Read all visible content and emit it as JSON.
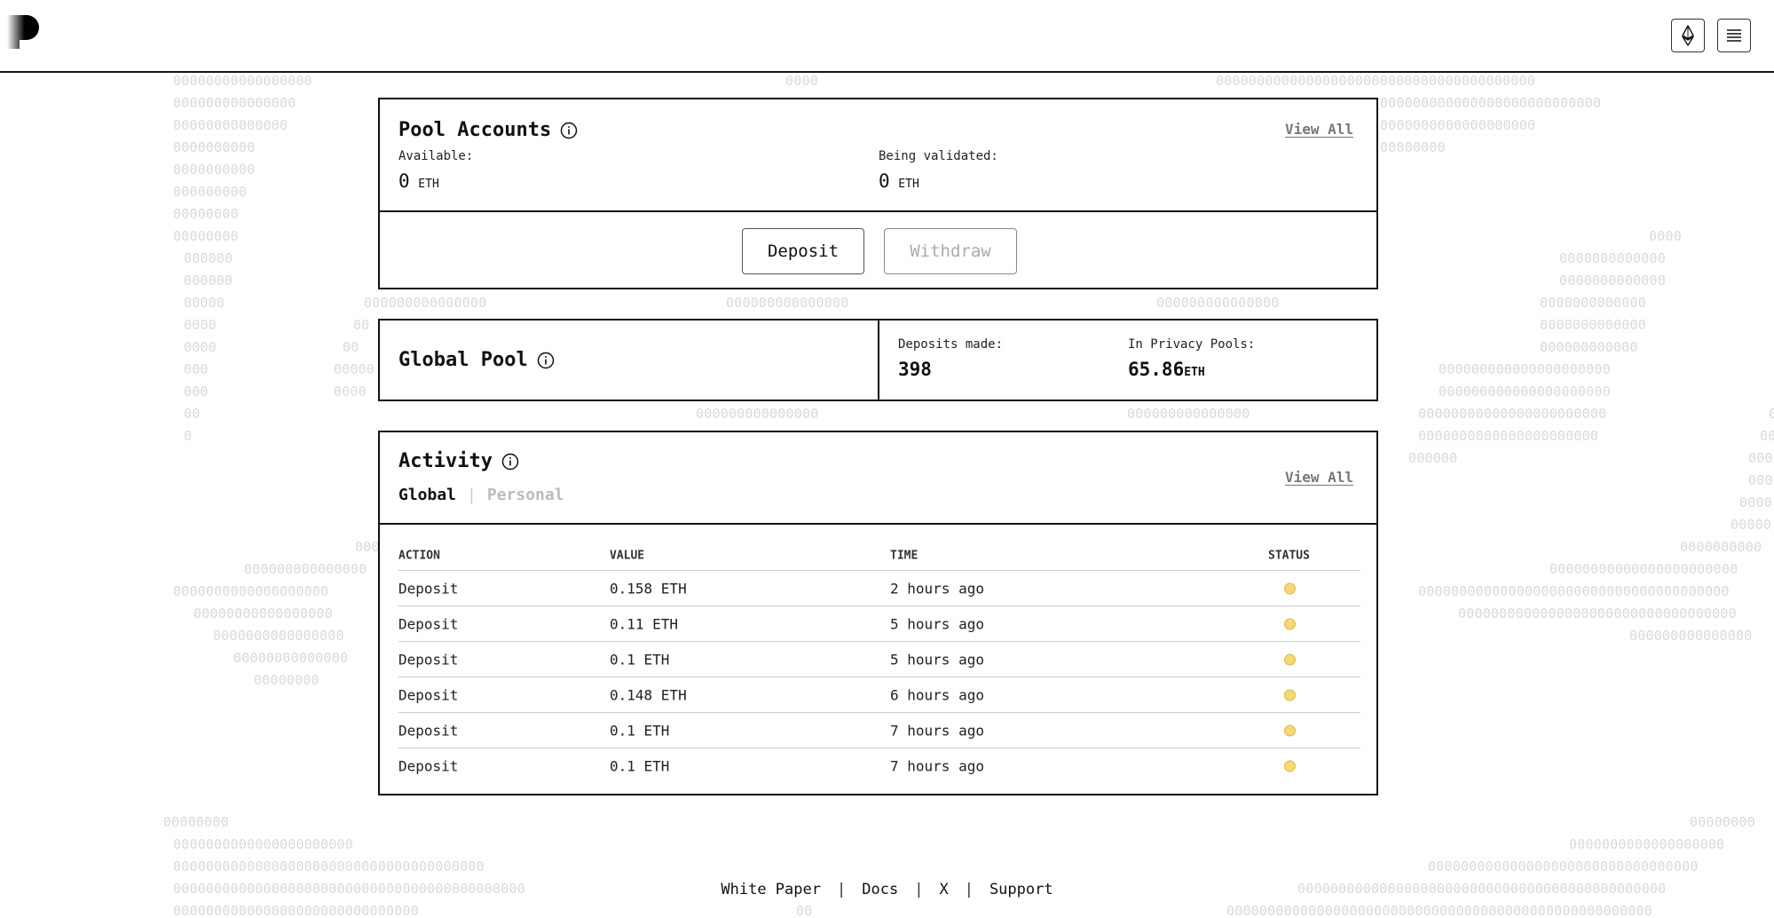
{
  "header": {
    "logo_icon": "privacy-pools-logo-icon",
    "network_icon": "ethereum-icon",
    "menu_icon": "menu-icon"
  },
  "pool_accounts": {
    "title": "Pool Accounts",
    "view_all": "View All",
    "available_label": "Available:",
    "available_value": "0",
    "available_unit": "ETH",
    "validating_label": "Being validated:",
    "validating_value": "0",
    "validating_unit": "ETH",
    "deposit_label": "Deposit",
    "withdraw_label": "Withdraw"
  },
  "global_pool": {
    "title": "Global Pool",
    "deposits_label": "Deposits made:",
    "deposits_value": "398",
    "privacy_label": "In Privacy Pools:",
    "privacy_value": "65.86",
    "privacy_unit": "ETH"
  },
  "activity": {
    "title": "Activity",
    "view_all": "View All",
    "tabs": [
      "Global",
      "Personal"
    ],
    "active_tab": "Global",
    "columns": [
      "ACTION",
      "VALUE",
      "TIME",
      "STATUS"
    ],
    "rows": [
      {
        "action": "Deposit",
        "value": "0.158 ETH",
        "time": "2 hours ago",
        "status": "pending"
      },
      {
        "action": "Deposit",
        "value": "0.11 ETH",
        "time": "5 hours ago",
        "status": "pending"
      },
      {
        "action": "Deposit",
        "value": "0.1 ETH",
        "time": "5 hours ago",
        "status": "pending"
      },
      {
        "action": "Deposit",
        "value": "0.148 ETH",
        "time": "6 hours ago",
        "status": "pending"
      },
      {
        "action": "Deposit",
        "value": "0.1 ETH",
        "time": "7 hours ago",
        "status": "pending"
      },
      {
        "action": "Deposit",
        "value": "0.1 ETH",
        "time": "7 hours ago",
        "status": "pending"
      }
    ]
  },
  "footer": {
    "links": [
      "White Paper",
      "Docs",
      "X",
      "Support"
    ],
    "separator": "|"
  },
  "colors": {
    "status_pending": "#f5d877",
    "background_pattern": "#d9d9d9"
  }
}
